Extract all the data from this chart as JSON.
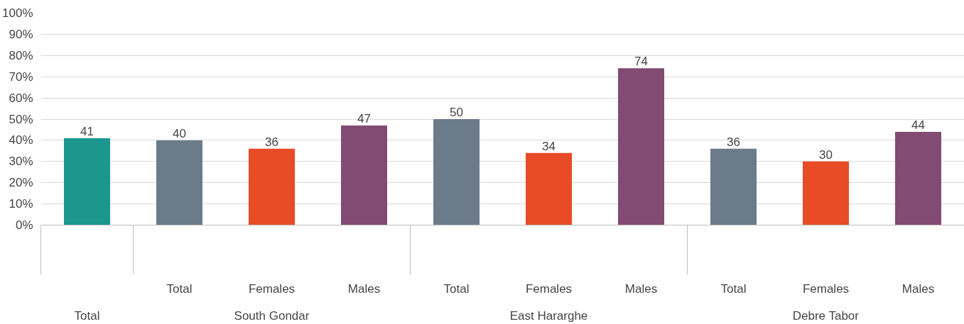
{
  "chart_data": {
    "type": "bar",
    "categories": [
      null,
      "Total",
      "Females",
      "Males",
      "Total",
      "Females",
      "Males",
      "Total",
      "Females",
      "Males"
    ],
    "values": [
      41,
      40,
      36,
      47,
      50,
      34,
      74,
      36,
      30,
      44
    ],
    "colors": [
      "#1c968f",
      "#6b7b89",
      "#e84b26",
      "#824b73",
      "#6b7b89",
      "#e84b26",
      "#824b73",
      "#6b7b89",
      "#e84b26",
      "#824b73"
    ],
    "annotations": [
      "Total",
      "South Gondar",
      "East Hararghe",
      "Debre Tabor"
    ],
    "ylim": [
      0,
      100
    ],
    "yticks": [
      {
        "value": 0,
        "label": "0%"
      },
      {
        "value": 10,
        "label": "10%"
      },
      {
        "value": 20,
        "label": "20%"
      },
      {
        "value": 30,
        "label": "30%"
      },
      {
        "value": 40,
        "label": "40%"
      },
      {
        "value": 50,
        "label": "50%"
      },
      {
        "value": 60,
        "label": "60%"
      },
      {
        "value": 70,
        "label": "70%"
      },
      {
        "value": 80,
        "label": "80%"
      },
      {
        "value": 90,
        "label": "90%"
      },
      {
        "value": 100,
        "label": "100%"
      }
    ],
    "grid": "y",
    "data_labels": true
  }
}
